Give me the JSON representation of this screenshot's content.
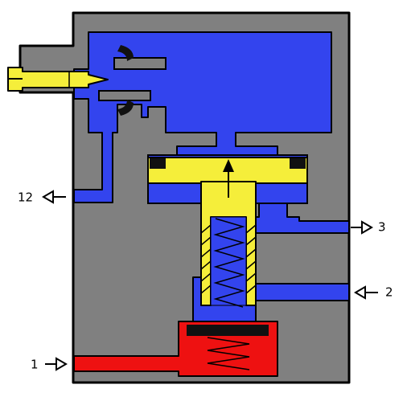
{
  "colors": {
    "housing": "#808080",
    "channel_blue": "#3344ee",
    "pilot_yellow": "#f5ee3a",
    "supply_red": "#ee1111",
    "seal_black": "#111111",
    "outline": "#000000"
  },
  "ports": [
    {
      "id": "port-12",
      "label": "12",
      "direction": "out"
    },
    {
      "id": "port-3",
      "label": "3",
      "direction": "out"
    },
    {
      "id": "port-2",
      "label": "2",
      "direction": "in"
    },
    {
      "id": "port-1",
      "label": "1",
      "direction": "in"
    }
  ],
  "icons": {
    "adjust_screw": "adjustment-screw-icon",
    "spring": "spring-icon",
    "flow_arrow": "arrow-up-icon",
    "port_arrow": "port-arrow-icon"
  }
}
